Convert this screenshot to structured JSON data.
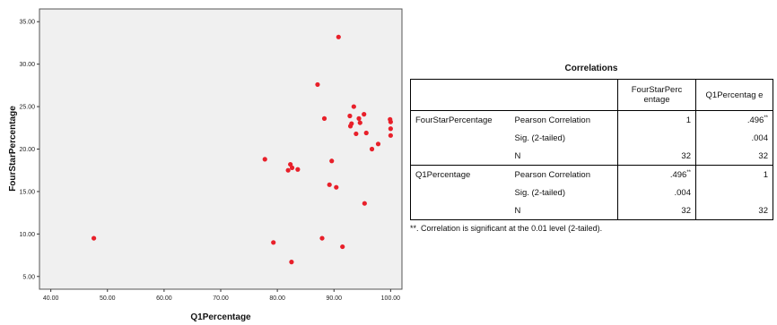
{
  "chart_data": [
    {
      "type": "scatter",
      "xlabel": "Q1Percentage",
      "ylabel": "FourStarPercentage",
      "xlim": [
        38,
        102
      ],
      "ylim": [
        3.5,
        36.5
      ],
      "x_ticks": [
        "40.00",
        "50.00",
        "60.00",
        "70.00",
        "80.00",
        "90.00",
        "100.00"
      ],
      "y_ticks": [
        "5.00",
        "10.00",
        "15.00",
        "20.00",
        "25.00",
        "30.00",
        "35.00"
      ],
      "grid": false,
      "background_color": "#f0f0f0",
      "point_color": "#e8202a",
      "points": [
        {
          "x": 47.6,
          "y": 9.5
        },
        {
          "x": 77.8,
          "y": 18.8
        },
        {
          "x": 79.3,
          "y": 9.0
        },
        {
          "x": 81.9,
          "y": 17.5
        },
        {
          "x": 82.3,
          "y": 18.2
        },
        {
          "x": 82.6,
          "y": 17.8
        },
        {
          "x": 82.5,
          "y": 6.7
        },
        {
          "x": 83.6,
          "y": 17.6
        },
        {
          "x": 87.1,
          "y": 27.6
        },
        {
          "x": 87.9,
          "y": 9.5
        },
        {
          "x": 88.3,
          "y": 23.6
        },
        {
          "x": 89.2,
          "y": 15.8
        },
        {
          "x": 89.6,
          "y": 18.6
        },
        {
          "x": 90.4,
          "y": 15.5
        },
        {
          "x": 90.8,
          "y": 33.2
        },
        {
          "x": 91.5,
          "y": 8.5
        },
        {
          "x": 92.8,
          "y": 23.9
        },
        {
          "x": 92.9,
          "y": 22.7
        },
        {
          "x": 93.1,
          "y": 23.0
        },
        {
          "x": 93.5,
          "y": 25.0
        },
        {
          "x": 93.9,
          "y": 21.8
        },
        {
          "x": 94.4,
          "y": 23.6
        },
        {
          "x": 94.6,
          "y": 23.1
        },
        {
          "x": 95.3,
          "y": 24.1
        },
        {
          "x": 95.4,
          "y": 13.6
        },
        {
          "x": 95.7,
          "y": 21.9
        },
        {
          "x": 96.7,
          "y": 20.0
        },
        {
          "x": 97.8,
          "y": 20.6
        },
        {
          "x": 99.9,
          "y": 23.5
        },
        {
          "x": 100.0,
          "y": 23.2
        },
        {
          "x": 100.0,
          "y": 22.4
        },
        {
          "x": 100.0,
          "y": 21.6
        }
      ]
    },
    {
      "type": "table",
      "title": "Correlations",
      "columns": [
        "FourStarPercentage",
        "Q1Percentage"
      ],
      "column_headers": [
        "FourStarPerc entage",
        "Q1Percentag e"
      ],
      "rows": [
        {
          "var": "FourStarPercentage",
          "stat": "Pearson Correlation",
          "c1": "1",
          "c2": ".496",
          "c2_sup": "**"
        },
        {
          "var": "",
          "stat": "Sig. (2-tailed)",
          "c1": "",
          "c2": ".004"
        },
        {
          "var": "",
          "stat": "N",
          "c1": "32",
          "c2": "32"
        },
        {
          "var": "Q1Percentage",
          "stat": "Pearson Correlation",
          "c1": ".496",
          "c1_sup": "**",
          "c2": "1"
        },
        {
          "var": "",
          "stat": "Sig. (2-tailed)",
          "c1": ".004",
          "c2": ""
        },
        {
          "var": "",
          "stat": "N",
          "c1": "32",
          "c2": "32"
        }
      ],
      "footnote": "**. Correlation is significant at the 0.01 level (2-tailed)."
    }
  ]
}
